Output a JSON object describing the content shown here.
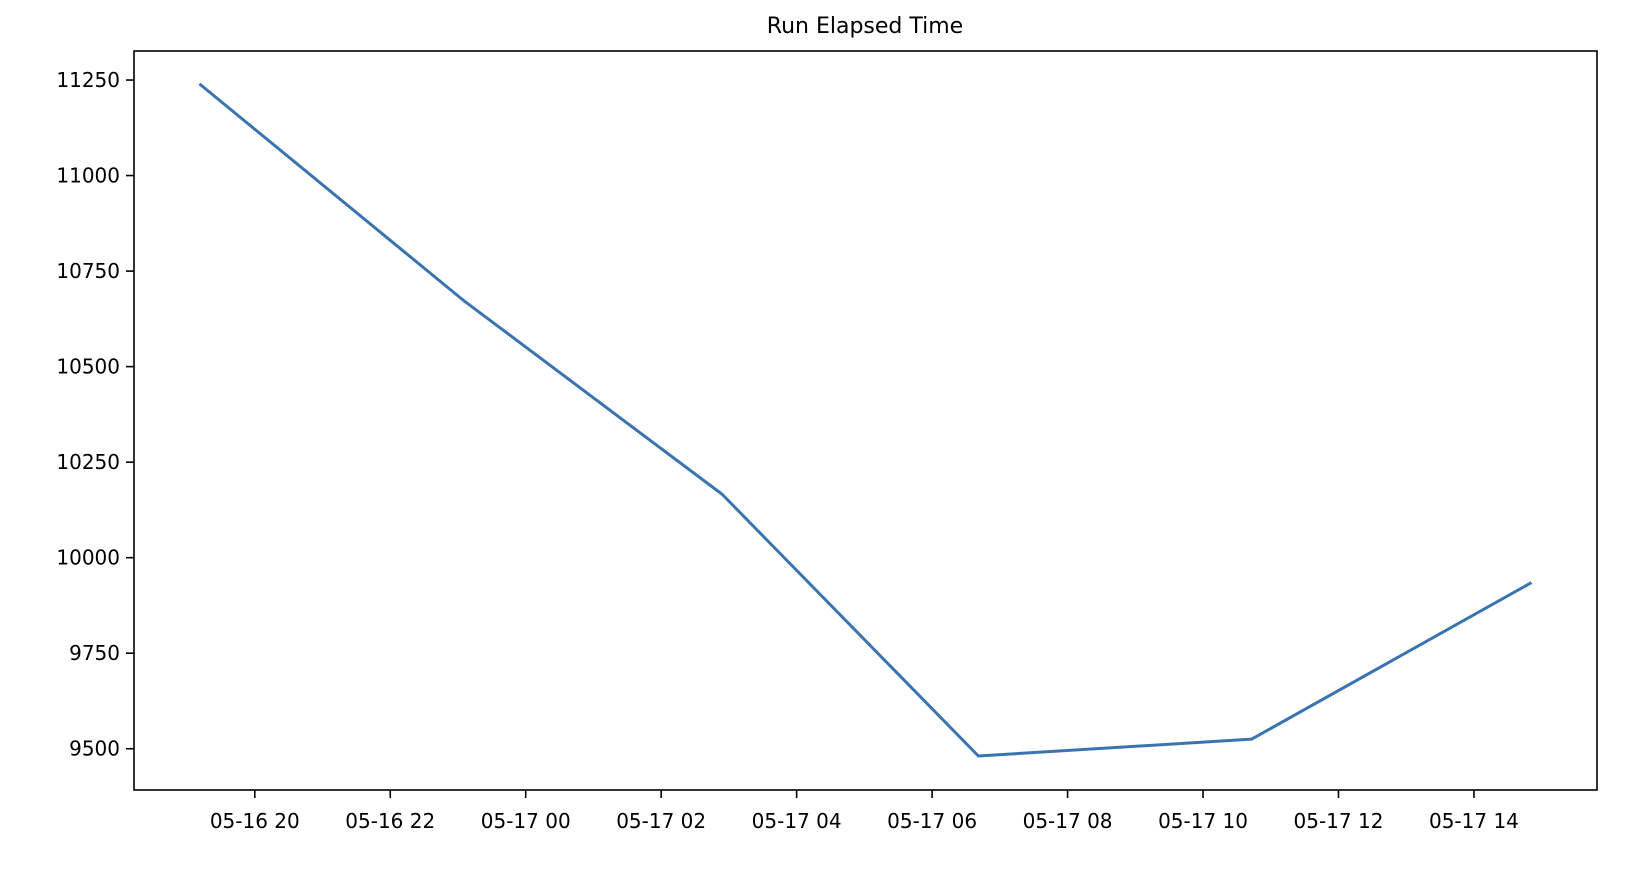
{
  "chart_data": {
    "type": "line",
    "title": "Run Elapsed Time",
    "xlabel": "",
    "ylabel": "",
    "x_format": "MM-DD HH",
    "x": [
      "05-16 19:11",
      "05-16 23:05",
      "05-17 02:54",
      "05-17 06:41",
      "05-17 10:43",
      "05-17 14:51"
    ],
    "series": [
      {
        "values": [
          11240,
          10673,
          10166,
          9481,
          9525,
          9935
        ],
        "color": "#3a74b0"
      }
    ],
    "xlim": [
      "05-16 18:13",
      "05-17 15:49"
    ],
    "ylim": [
      9392,
      11326
    ],
    "xticks": [
      "05-16 20",
      "05-16 22",
      "05-17 00",
      "05-17 02",
      "05-17 04",
      "05-17 06",
      "05-17 08",
      "05-17 10",
      "05-17 12",
      "05-17 14"
    ],
    "yticks": [
      9500,
      9750,
      10000,
      10250,
      10500,
      10750,
      11000,
      11250
    ],
    "grid": false,
    "legend": "none"
  }
}
